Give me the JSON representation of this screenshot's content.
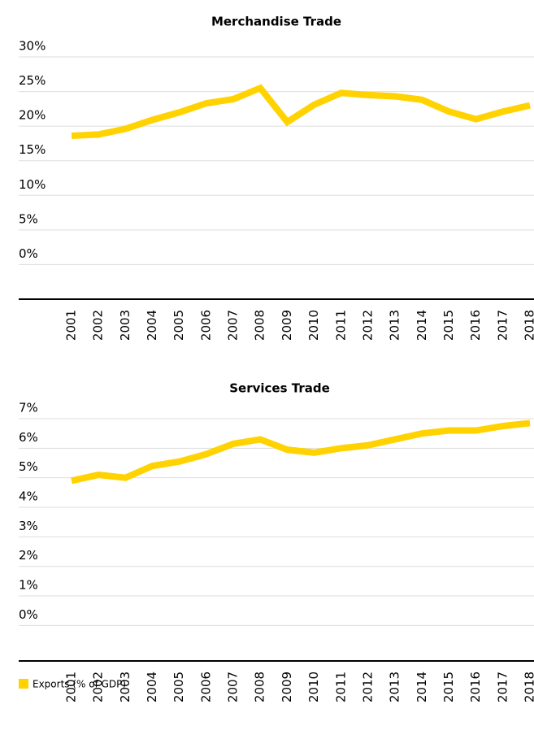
{
  "chart_data": [
    {
      "type": "line",
      "title": "Merchandise Trade",
      "categories": [
        "2001",
        "2002",
        "2003",
        "2004",
        "2005",
        "2006",
        "2007",
        "2008",
        "2009",
        "2010",
        "2011",
        "2012",
        "2013",
        "2014",
        "2015",
        "2016",
        "2017",
        "2018"
      ],
      "series": [
        {
          "name": "Exports (% of GDP)",
          "color": "#ffd200",
          "values": [
            18.6,
            18.8,
            19.6,
            20.9,
            22.0,
            23.3,
            23.9,
            25.5,
            20.6,
            23.1,
            24.8,
            24.5,
            24.3,
            23.8,
            22.1,
            21.0,
            22.1,
            23.0
          ]
        }
      ],
      "ylim": [
        -5,
        30
      ],
      "yticks": [
        {
          "value": 30,
          "label": "30%"
        },
        {
          "value": 25,
          "label": "25%"
        },
        {
          "value": 20,
          "label": "20%"
        },
        {
          "value": 15,
          "label": "15%"
        },
        {
          "value": 10,
          "label": "10%"
        },
        {
          "value": 5,
          "label": "5%"
        },
        {
          "value": 0,
          "label": "0%"
        }
      ],
      "grid": true
    },
    {
      "type": "line",
      "title": "Services Trade",
      "categories": [
        "2001",
        "2002",
        "2003",
        "2004",
        "2005",
        "2006",
        "2007",
        "2008",
        "2009",
        "2010",
        "2011",
        "2012",
        "2013",
        "2014",
        "2015",
        "2016",
        "2017",
        "2018"
      ],
      "series": [
        {
          "color": "#ffd200",
          "values": [
            4.9,
            5.1,
            5.0,
            5.4,
            5.55,
            5.8,
            6.15,
            6.3,
            5.95,
            5.85,
            6.0,
            6.1,
            6.3,
            6.5,
            6.6,
            6.6,
            6.75,
            6.85
          ]
        }
      ],
      "ylim": [
        -1.2,
        7
      ],
      "yticks": [
        {
          "value": 7,
          "label": "7%"
        },
        {
          "value": 6,
          "label": "6%"
        },
        {
          "value": 5,
          "label": "5%"
        },
        {
          "value": 4,
          "label": "4%"
        },
        {
          "value": 3,
          "label": "3%"
        },
        {
          "value": 2,
          "label": "2%"
        },
        {
          "value": 1,
          "label": "1%"
        },
        {
          "value": 0,
          "label": "0%"
        }
      ],
      "grid": true
    }
  ]
}
